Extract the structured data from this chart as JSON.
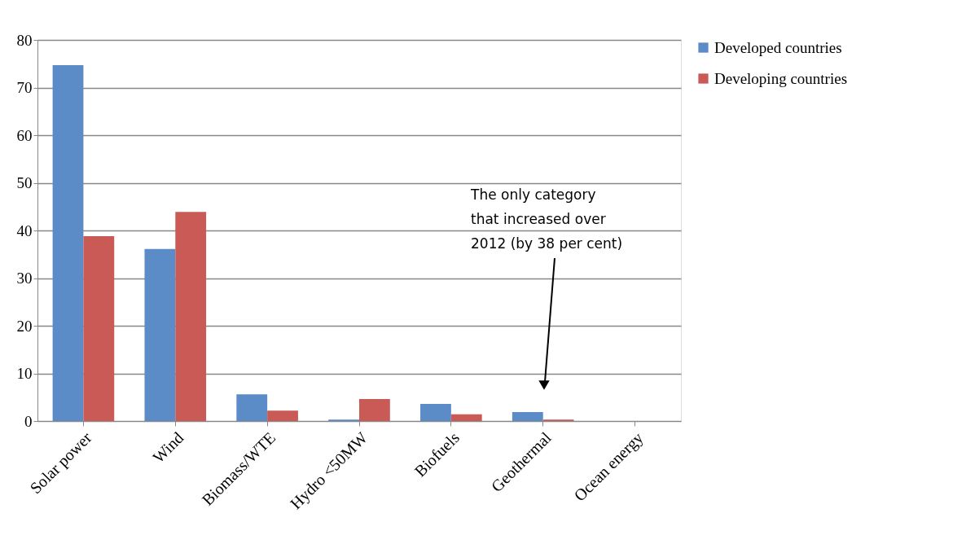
{
  "chart_data": {
    "type": "bar",
    "categories": [
      "Solar power",
      "Wind",
      "Biomass/WTE",
      "Hydro <50MW",
      "Biofuels",
      "Geothermal",
      "Ocean energy"
    ],
    "series": [
      {
        "name": "Developed countries",
        "color": "#5b8cc8",
        "values": [
          74.7,
          36.1,
          5.6,
          0.3,
          3.6,
          1.9,
          0
        ]
      },
      {
        "name": "Developing countries",
        "color": "#c95a56",
        "values": [
          38.8,
          43.9,
          2.2,
          4.6,
          1.4,
          0.3,
          0
        ]
      }
    ],
    "ylim": [
      0,
      80
    ],
    "yticks": [
      0,
      10,
      20,
      30,
      40,
      50,
      60,
      70,
      80
    ],
    "grid": "y",
    "legend": "right",
    "annotations": [
      "The only category that increased over 2012 (by 38 per cent)"
    ]
  }
}
